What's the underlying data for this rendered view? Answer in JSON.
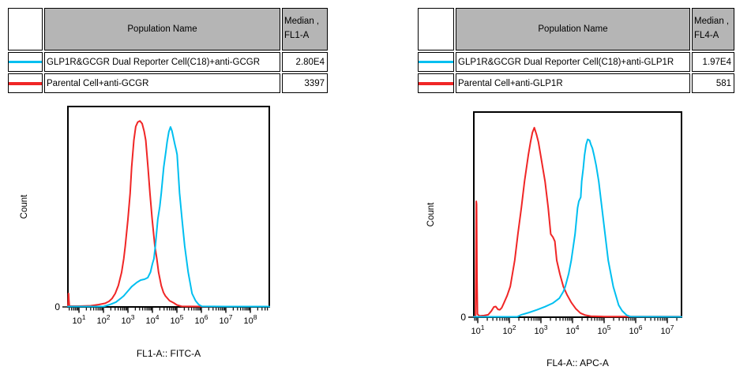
{
  "background": "#ffffff",
  "colors": {
    "reporter_cyan": "#00bff0",
    "parental_red": "#f02626",
    "table_header_gray": "#b5b5b5",
    "axis_black": "#000000"
  },
  "tables": [
    {
      "id": "fl1",
      "header": {
        "population": "Population Name",
        "median_line1": "Median ,",
        "median_line2": "FL1-A"
      },
      "rows": [
        {
          "swatch_color": "#00bff0",
          "swatch_thickness": 3,
          "population": "GLP1R&GCGR Dual Reporter Cell(C18)+anti-GCGR",
          "median": "2.80E4"
        },
        {
          "swatch_color": "#f02626",
          "swatch_thickness": 4,
          "population": "Parental Cell+anti-GCGR",
          "median": "3397"
        }
      ]
    },
    {
      "id": "fl4",
      "header": {
        "population": "Population Name",
        "median_line1": "Median ,",
        "median_line2": "FL4-A"
      },
      "rows": [
        {
          "swatch_color": "#00bff0",
          "swatch_thickness": 3,
          "population": "GLP1R&GCGR Dual Reporter Cell(C18)+anti-GLP1R",
          "median": "1.97E4"
        },
        {
          "swatch_color": "#f02626",
          "swatch_thickness": 4,
          "population": "Parental Cell+anti-GLP1R",
          "median": "581"
        }
      ]
    }
  ],
  "chart_data": [
    {
      "id": "fl1",
      "type": "line",
      "subtype": "flow-cytometry-histogram-overlay",
      "xlabel": "FL1-A:: FITC-A",
      "ylabel": "Count",
      "x_scale": "log10",
      "x_tick_exponents": [
        1,
        2,
        3,
        4,
        5,
        6,
        7,
        8
      ],
      "x_range_log10": [
        0.548,
        8.774
      ],
      "y_zero_label": "0",
      "grid": false,
      "legend": "none",
      "series": [
        {
          "name": "Parental Cell+anti-GCGR",
          "color": "#f02626",
          "median": "3397",
          "points_logx_yfrac": [
            [
              0.548,
              0.004
            ],
            [
              0.56,
              0.028
            ],
            [
              0.574,
              0.067
            ],
            [
              0.59,
              0.03
            ],
            [
              0.61,
              0.004
            ],
            [
              1.0,
              0.004
            ],
            [
              1.48,
              0.006
            ],
            [
              1.81,
              0.012
            ],
            [
              2.07,
              0.018
            ],
            [
              2.23,
              0.028
            ],
            [
              2.35,
              0.042
            ],
            [
              2.48,
              0.067
            ],
            [
              2.61,
              0.107
            ],
            [
              2.74,
              0.173
            ],
            [
              2.83,
              0.24
            ],
            [
              2.89,
              0.303
            ],
            [
              3.0,
              0.437
            ],
            [
              3.09,
              0.567
            ],
            [
              3.15,
              0.697
            ],
            [
              3.24,
              0.831
            ],
            [
              3.32,
              0.9
            ],
            [
              3.4,
              0.922
            ],
            [
              3.49,
              0.928
            ],
            [
              3.58,
              0.915
            ],
            [
              3.66,
              0.877
            ],
            [
              3.73,
              0.831
            ],
            [
              3.82,
              0.697
            ],
            [
              3.9,
              0.567
            ],
            [
              3.99,
              0.437
            ],
            [
              4.1,
              0.303
            ],
            [
              4.18,
              0.24
            ],
            [
              4.25,
              0.173
            ],
            [
              4.36,
              0.106
            ],
            [
              4.45,
              0.072
            ],
            [
              4.53,
              0.055
            ],
            [
              4.7,
              0.031
            ],
            [
              4.87,
              0.02
            ],
            [
              5.0,
              0.01
            ],
            [
              5.19,
              0.003
            ],
            [
              6.0,
              0.002
            ],
            [
              8.774,
              0.002
            ]
          ]
        },
        {
          "name": "GLP1R&GCGR Dual Reporter Cell(C18)+anti-GCGR",
          "color": "#00bff0",
          "median": "2.80E4",
          "points_logx_yfrac": [
            [
              0.548,
              0.002
            ],
            [
              2.0,
              0.002
            ],
            [
              2.29,
              0.013
            ],
            [
              2.51,
              0.024
            ],
            [
              2.71,
              0.043
            ],
            [
              2.83,
              0.055
            ],
            [
              2.97,
              0.075
            ],
            [
              3.15,
              0.101
            ],
            [
              3.36,
              0.122
            ],
            [
              3.52,
              0.134
            ],
            [
              3.68,
              0.138
            ],
            [
              3.81,
              0.146
            ],
            [
              3.92,
              0.173
            ],
            [
              4.0,
              0.215
            ],
            [
              4.06,
              0.24
            ],
            [
              4.12,
              0.303
            ],
            [
              4.22,
              0.437
            ],
            [
              4.3,
              0.5
            ],
            [
              4.36,
              0.567
            ],
            [
              4.46,
              0.697
            ],
            [
              4.55,
              0.777
            ],
            [
              4.6,
              0.823
            ],
            [
              4.67,
              0.874
            ],
            [
              4.74,
              0.898
            ],
            [
              4.8,
              0.878
            ],
            [
              4.86,
              0.843
            ],
            [
              4.92,
              0.81
            ],
            [
              4.97,
              0.783
            ],
            [
              5.01,
              0.76
            ],
            [
              5.11,
              0.567
            ],
            [
              5.21,
              0.437
            ],
            [
              5.32,
              0.303
            ],
            [
              5.46,
              0.173
            ],
            [
              5.62,
              0.067
            ],
            [
              5.76,
              0.031
            ],
            [
              5.89,
              0.012
            ],
            [
              6.02,
              0.003
            ],
            [
              7.0,
              0.002
            ],
            [
              8.774,
              0.002
            ]
          ]
        }
      ]
    },
    {
      "id": "fl4",
      "type": "line",
      "subtype": "flow-cytometry-histogram-overlay",
      "xlabel": "FL4-A:: APC-A",
      "ylabel": "Count",
      "x_scale": "log10",
      "x_tick_exponents": [
        1,
        2,
        3,
        4,
        5,
        6,
        7
      ],
      "x_range_log10": [
        0.875,
        7.45
      ],
      "y_zero_label": "0",
      "grid": false,
      "legend": "none",
      "series": [
        {
          "name": "Parental Cell+anti-GLP1R",
          "color": "#f02626",
          "median": "581",
          "points_logx_yfrac": [
            [
              0.875,
              0.002
            ],
            [
              0.93,
              0.006
            ],
            [
              0.945,
              0.35
            ],
            [
              0.952,
              0.565
            ],
            [
              0.962,
              0.55
            ],
            [
              0.975,
              0.2
            ],
            [
              0.99,
              0.015
            ],
            [
              1.05,
              0.006
            ],
            [
              1.2,
              0.008
            ],
            [
              1.33,
              0.012
            ],
            [
              1.43,
              0.03
            ],
            [
              1.51,
              0.05
            ],
            [
              1.57,
              0.052
            ],
            [
              1.64,
              0.038
            ],
            [
              1.7,
              0.036
            ],
            [
              1.76,
              0.046
            ],
            [
              1.83,
              0.07
            ],
            [
              1.93,
              0.105
            ],
            [
              2.03,
              0.15
            ],
            [
              2.17,
              0.277
            ],
            [
              2.27,
              0.405
            ],
            [
              2.38,
              0.533
            ],
            [
              2.48,
              0.662
            ],
            [
              2.6,
              0.79
            ],
            [
              2.67,
              0.854
            ],
            [
              2.73,
              0.9
            ],
            [
              2.79,
              0.924
            ],
            [
              2.86,
              0.89
            ],
            [
              2.92,
              0.854
            ],
            [
              2.99,
              0.79
            ],
            [
              3.13,
              0.662
            ],
            [
              3.23,
              0.533
            ],
            [
              3.31,
              0.405
            ],
            [
              3.38,
              0.39
            ],
            [
              3.44,
              0.37
            ],
            [
              3.5,
              0.277
            ],
            [
              3.6,
              0.21
            ],
            [
              3.71,
              0.149
            ],
            [
              3.83,
              0.108
            ],
            [
              3.96,
              0.072
            ],
            [
              4.1,
              0.042
            ],
            [
              4.25,
              0.02
            ],
            [
              4.4,
              0.01
            ],
            [
              4.58,
              0.005
            ],
            [
              5.0,
              0.003
            ],
            [
              7.45,
              0.003
            ]
          ]
        },
        {
          "name": "GLP1R&GCGR Dual Reporter Cell(C18)+anti-GLP1R",
          "color": "#00bff0",
          "median": "1.97E4",
          "points_logx_yfrac": [
            [
              0.875,
              0.002
            ],
            [
              2.25,
              0.002
            ],
            [
              2.38,
              0.012
            ],
            [
              2.63,
              0.023
            ],
            [
              2.88,
              0.036
            ],
            [
              3.13,
              0.051
            ],
            [
              3.38,
              0.069
            ],
            [
              3.58,
              0.092
            ],
            [
              3.71,
              0.125
            ],
            [
              3.77,
              0.149
            ],
            [
              3.88,
              0.213
            ],
            [
              3.96,
              0.277
            ],
            [
              4.08,
              0.405
            ],
            [
              4.16,
              0.533
            ],
            [
              4.2,
              0.565
            ],
            [
              4.26,
              0.585
            ],
            [
              4.29,
              0.662
            ],
            [
              4.34,
              0.726
            ],
            [
              4.38,
              0.79
            ],
            [
              4.43,
              0.841
            ],
            [
              4.48,
              0.867
            ],
            [
              4.54,
              0.862
            ],
            [
              4.58,
              0.842
            ],
            [
              4.63,
              0.823
            ],
            [
              4.68,
              0.79
            ],
            [
              4.75,
              0.738
            ],
            [
              4.83,
              0.662
            ],
            [
              4.93,
              0.533
            ],
            [
              5.03,
              0.405
            ],
            [
              5.13,
              0.277
            ],
            [
              5.29,
              0.149
            ],
            [
              5.46,
              0.059
            ],
            [
              5.57,
              0.031
            ],
            [
              5.71,
              0.01
            ],
            [
              5.83,
              0.003
            ],
            [
              7.45,
              0.002
            ]
          ]
        }
      ]
    }
  ]
}
